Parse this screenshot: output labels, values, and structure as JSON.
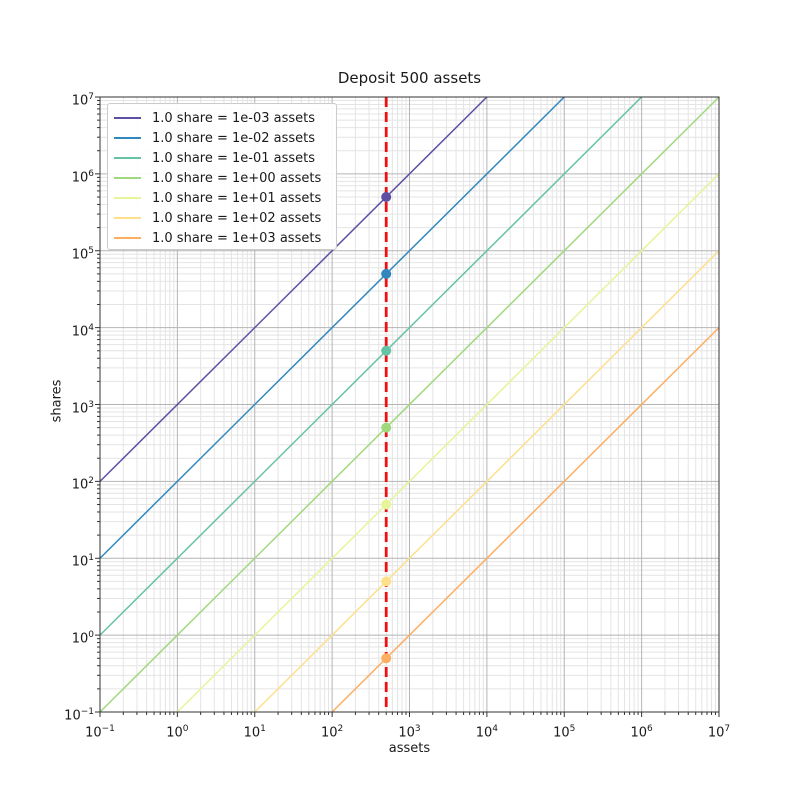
{
  "figure": {
    "title": "Deposit 500 assets",
    "xlabel": "assets",
    "ylabel": "shares"
  },
  "chart_data": {
    "type": "line",
    "title": "Deposit 500 assets",
    "xlabel": "assets",
    "ylabel": "shares",
    "xscale": "log",
    "yscale": "log",
    "xlim": [
      0.1,
      10000000
    ],
    "ylim": [
      0.1,
      10000000
    ],
    "x_tick_exponents": [
      -1,
      0,
      1,
      2,
      3,
      4,
      5,
      6,
      7
    ],
    "y_tick_exponents": [
      -1,
      0,
      1,
      2,
      3,
      4,
      5,
      6,
      7
    ],
    "grid": {
      "major": true,
      "minor": true
    },
    "legend_position": "upper left",
    "deposit_assets": 500,
    "vline": {
      "x": 500,
      "color": "#ee1111",
      "style": "dashed"
    },
    "series": [
      {
        "label": "1.0 share = 1e-03 assets",
        "assets_per_share": 0.001,
        "color": "#5e4fa2",
        "point": {
          "x": 500,
          "y": 500000
        }
      },
      {
        "label": "1.0 share = 1e-02 assets",
        "assets_per_share": 0.01,
        "color": "#3288bd",
        "point": {
          "x": 500,
          "y": 50000
        }
      },
      {
        "label": "1.0 share = 1e-01 assets",
        "assets_per_share": 0.1,
        "color": "#66c2a5",
        "point": {
          "x": 500,
          "y": 5000
        }
      },
      {
        "label": "1.0 share = 1e+00 assets",
        "assets_per_share": 1,
        "color": "#a0d87d",
        "point": {
          "x": 500,
          "y": 500
        }
      },
      {
        "label": "1.0 share = 1e+01 assets",
        "assets_per_share": 10,
        "color": "#e6f598",
        "point": {
          "x": 500,
          "y": 50
        }
      },
      {
        "label": "1.0 share = 1e+02 assets",
        "assets_per_share": 100,
        "color": "#fee08b",
        "point": {
          "x": 500,
          "y": 5
        }
      },
      {
        "label": "1.0 share = 1e+03 assets",
        "assets_per_share": 1000,
        "color": "#fdae61",
        "point": {
          "x": 500,
          "y": 0.5
        }
      }
    ]
  }
}
